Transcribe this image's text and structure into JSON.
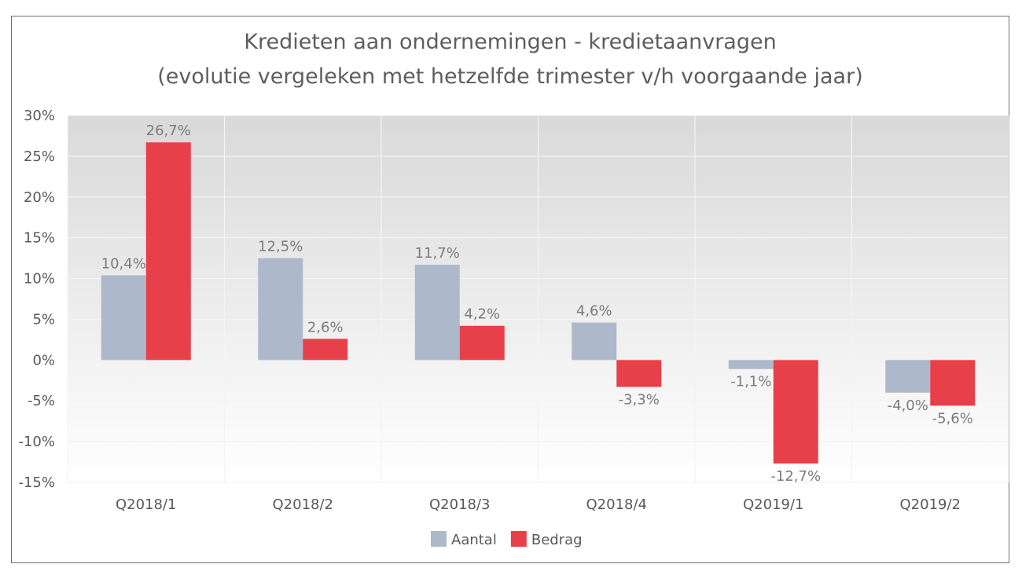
{
  "chart_data": {
    "type": "bar",
    "title": "Kredieten aan ondernemingen - kredietaanvragen",
    "subtitle": "(evolutie vergeleken met hetzelfde trimester v/h voorgaande jaar)",
    "categories": [
      "Q2018/1",
      "Q2018/2",
      "Q2018/3",
      "Q2018/4",
      "Q2019/1",
      "Q2019/2"
    ],
    "series": [
      {
        "name": "Aantal",
        "color": "#adb9ca",
        "values": [
          10.4,
          12.5,
          11.7,
          4.6,
          -1.1,
          -4.0
        ],
        "labels": [
          "10,4%",
          "12,5%",
          "11,7%",
          "4,6%",
          "-1,1%",
          "-4,0%"
        ]
      },
      {
        "name": "Bedrag",
        "color": "#e8404a",
        "values": [
          26.7,
          2.6,
          4.2,
          -3.3,
          -12.7,
          -5.6
        ],
        "labels": [
          "26,7%",
          "2,6%",
          "4,2%",
          "-3,3%",
          "-12,7%",
          "-5,6%"
        ]
      }
    ],
    "ylim": [
      -15,
      30
    ],
    "yticks": [
      30,
      25,
      20,
      15,
      10,
      5,
      0,
      -5,
      -10,
      -15
    ],
    "ytick_labels": [
      "30%",
      "25%",
      "20%",
      "15%",
      "10%",
      "5%",
      "0%",
      "-5%",
      "-10%",
      "-15%"
    ],
    "xlabel": "",
    "ylabel": "",
    "grid": true,
    "legend": "bottom-center"
  }
}
